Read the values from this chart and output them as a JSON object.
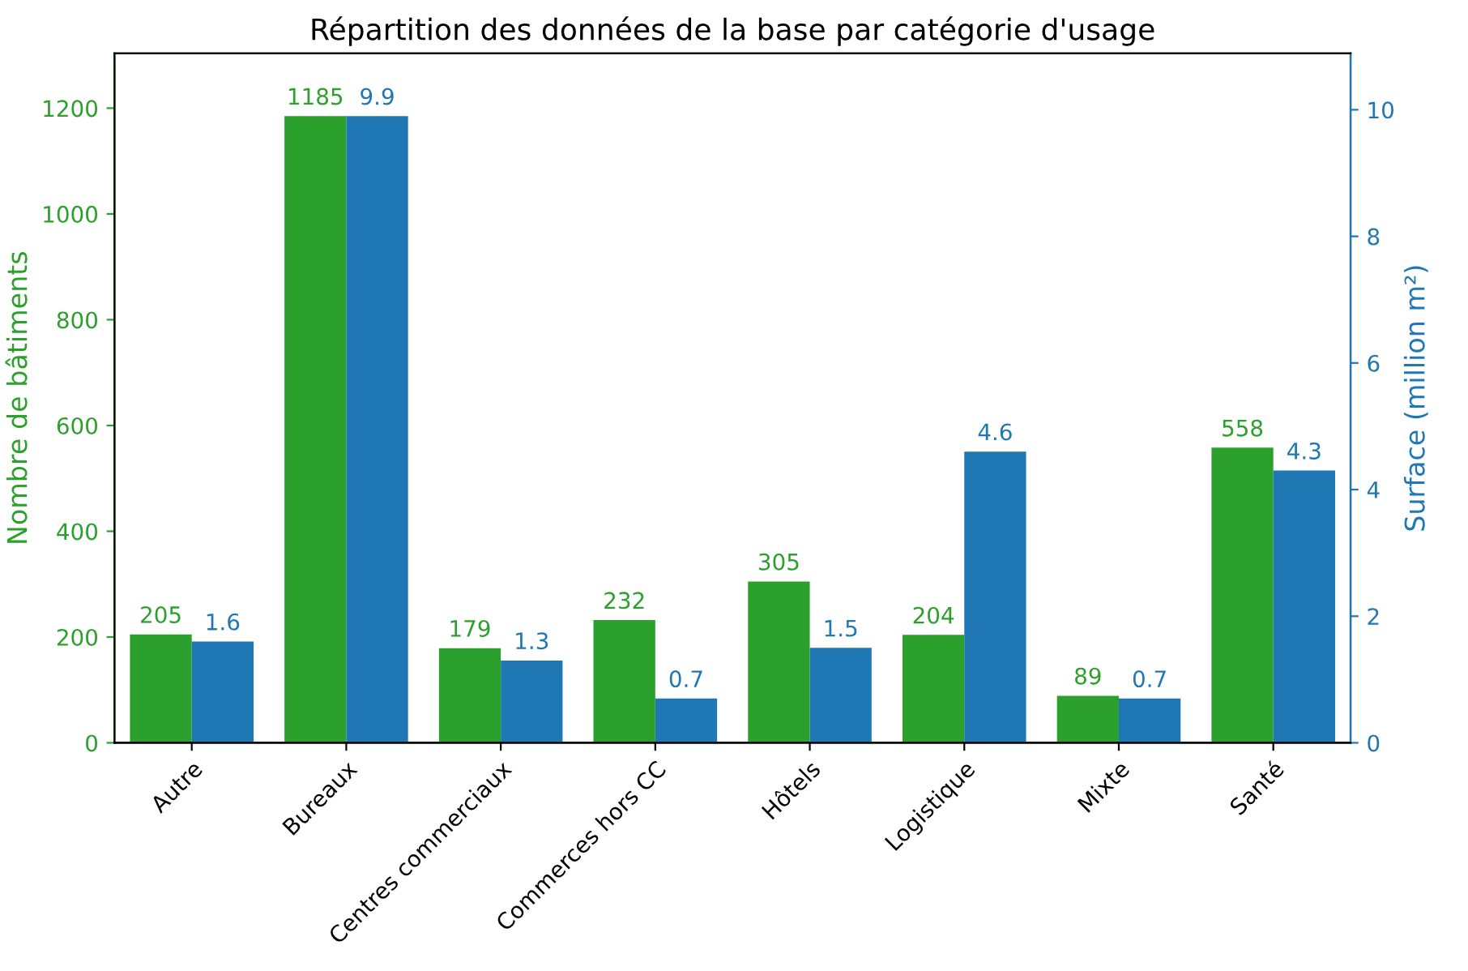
{
  "chart_data": {
    "type": "bar",
    "title": "Répartition des données de la base par catégorie d'usage",
    "categories": [
      "Autre",
      "Bureaux",
      "Centres commerciaux",
      "Commerces hors CC",
      "Hôtels",
      "Logistique",
      "Mixte",
      "Santé"
    ],
    "series": [
      {
        "color": "#2ca02c",
        "values": [
          205,
          1185,
          179,
          232,
          305,
          204,
          89,
          558
        ]
      },
      {
        "color": "#1f77b4",
        "axis": "y2",
        "values": [
          1.6,
          9.9,
          1.3,
          0.7,
          1.5,
          4.6,
          0.7,
          4.3
        ]
      }
    ],
    "ylabel": "Nombre de bâtiments",
    "y2label": "Surface (million m²)",
    "ylim": [
      0,
      1303.5
    ],
    "yticks": [
      0,
      200,
      400,
      600,
      800,
      1000,
      1200
    ],
    "y2lim": [
      0,
      10.89
    ],
    "y2ticks": [
      0,
      2,
      4,
      6,
      8,
      10
    ],
    "data_labels": true,
    "grid": false,
    "legend": false
  }
}
